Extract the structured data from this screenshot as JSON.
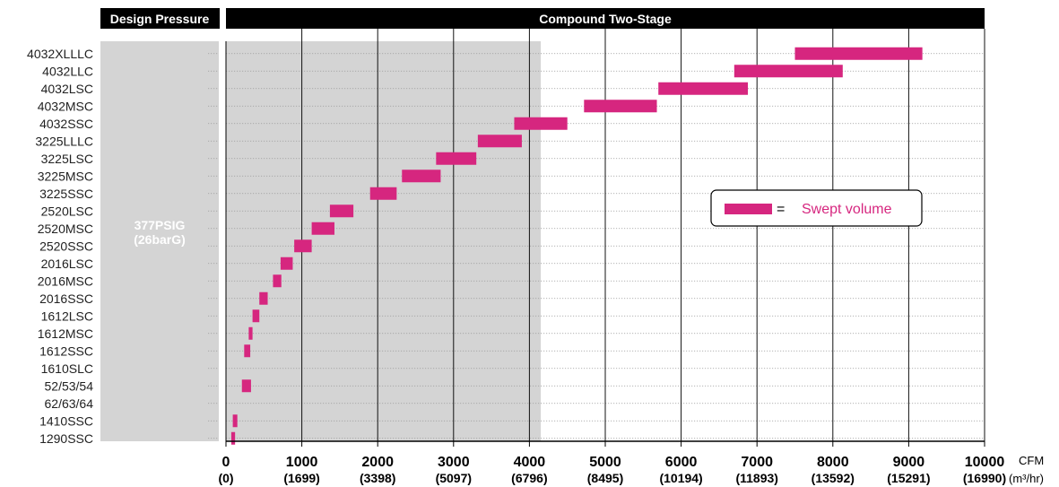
{
  "header": {
    "left_title": "Design Pressure",
    "right_title": "Compound Two-Stage"
  },
  "design_pressure": {
    "line1": "377PSIG",
    "line2": "(26barG)"
  },
  "legend": {
    "equals": "=",
    "label": "Swept volume"
  },
  "colors": {
    "bar": "#d6267f",
    "header_bg": "#000000",
    "shade": "#d4d4d4"
  },
  "chart_data": {
    "type": "bar",
    "orientation": "horizontal-range",
    "xlim": [
      0,
      10000
    ],
    "x_unit_primary": "CFM",
    "x_unit_secondary": "(m³/hr)",
    "x_ticks": [
      {
        "value": 0,
        "label": "0",
        "label2": "(0)"
      },
      {
        "value": 1000,
        "label": "1000",
        "label2": "(1699)"
      },
      {
        "value": 2000,
        "label": "2000",
        "label2": "(3398)"
      },
      {
        "value": 3000,
        "label": "3000",
        "label2": "(5097)"
      },
      {
        "value": 4000,
        "label": "4000",
        "label2": "(6796)"
      },
      {
        "value": 5000,
        "label": "5000",
        "label2": "(8495)"
      },
      {
        "value": 6000,
        "label": "6000",
        "label2": "(10194)"
      },
      {
        "value": 7000,
        "label": "7000",
        "label2": "(11893)"
      },
      {
        "value": 8000,
        "label": "8000",
        "label2": "(13592)"
      },
      {
        "value": 9000,
        "label": "9000",
        "label2": "(15291)"
      },
      {
        "value": 10000,
        "label": "10000",
        "label2": "(16990)"
      }
    ],
    "shaded_region": [
      0,
      4150
    ],
    "models": [
      {
        "label": "4032XLLLC",
        "start": 7500,
        "end": 9180
      },
      {
        "label": "4032LLC",
        "start": 6700,
        "end": 8130
      },
      {
        "label": "4032LSC",
        "start": 5700,
        "end": 6880
      },
      {
        "label": "4032MSC",
        "start": 4720,
        "end": 5680
      },
      {
        "label": "4032SSC",
        "start": 3800,
        "end": 4500
      },
      {
        "label": "3225LLLC",
        "start": 3320,
        "end": 3900
      },
      {
        "label": "3225LSC",
        "start": 2770,
        "end": 3300
      },
      {
        "label": "3225MSC",
        "start": 2320,
        "end": 2830
      },
      {
        "label": "3225SSC",
        "start": 1900,
        "end": 2250
      },
      {
        "label": "2520LSC",
        "start": 1370,
        "end": 1680
      },
      {
        "label": "2520MSC",
        "start": 1130,
        "end": 1430
      },
      {
        "label": "2520SSC",
        "start": 900,
        "end": 1130
      },
      {
        "label": "2016LSC",
        "start": 720,
        "end": 880
      },
      {
        "label": "2016MSC",
        "start": 620,
        "end": 730
      },
      {
        "label": "2016SSC",
        "start": 440,
        "end": 550
      },
      {
        "label": "1612LSC",
        "start": 350,
        "end": 440
      },
      {
        "label": "1612MSC",
        "start": 300,
        "end": 350
      },
      {
        "label": "1612SSC",
        "start": 240,
        "end": 320
      },
      {
        "label": "1610SLC",
        "start": null,
        "end": null
      },
      {
        "label": "52/53/54",
        "start": 210,
        "end": 330
      },
      {
        "label": "62/63/64",
        "start": null,
        "end": null
      },
      {
        "label": "1410SSC",
        "start": 90,
        "end": 150
      },
      {
        "label": "1290SSC",
        "start": 70,
        "end": 120
      }
    ]
  }
}
